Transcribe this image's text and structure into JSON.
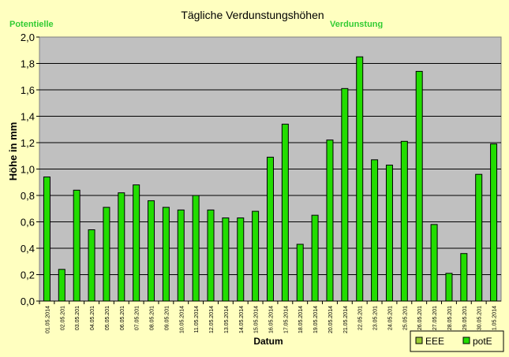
{
  "chart_data": {
    "type": "bar",
    "title": "Tägliche Verdunstungshöhen",
    "xlabel": "Datum",
    "ylabel": "Höhe in mm",
    "ylim": [
      0,
      2.0
    ],
    "yticks": [
      "0,0",
      "0,2",
      "0,4",
      "0,6",
      "0,8",
      "1,0",
      "1,2",
      "1,4",
      "1,6",
      "1,8",
      "2,0"
    ],
    "grid": true,
    "legend_position": "bottom-right",
    "categories": [
      "01.05.2014",
      "02.05.201",
      "03.05.201",
      "04.05.201",
      "05.05.201",
      "06.05.201",
      "07.05.201",
      "08.05.201",
      "09.05.201",
      "10.05.2014",
      "11.05.2014",
      "12.05.2014",
      "13.05.2014",
      "14.05.2014",
      "15.05.2014",
      "16.05.2014",
      "17.05.2014",
      "18.05.2014",
      "19.05.2014",
      "20.05.2014",
      "21.05.2014",
      "22.05.201",
      "23.05.201",
      "24.05.201",
      "25.05.201",
      "26.05.201",
      "27.05.201",
      "28.05.201",
      "29.05.201",
      "30.05.201",
      "31.05.2014"
    ],
    "series": [
      {
        "name": "EEE",
        "color": "#99cc33",
        "values": [
          0,
          0,
          0,
          0,
          0,
          0,
          0,
          0,
          0,
          0,
          0,
          0,
          0,
          0,
          0,
          0,
          0,
          0,
          0,
          0,
          0,
          0,
          0,
          0,
          0,
          0,
          0,
          0,
          0,
          0,
          0
        ]
      },
      {
        "name": "potE",
        "color": "#22dd00",
        "values": [
          0.94,
          0.24,
          0.84,
          0.54,
          0.71,
          0.82,
          0.88,
          0.76,
          0.71,
          0.69,
          0.8,
          0.69,
          0.63,
          0.63,
          0.68,
          1.09,
          1.34,
          0.43,
          0.65,
          1.22,
          1.61,
          1.85,
          1.07,
          1.03,
          1.21,
          1.74,
          0.58,
          0.21,
          0.36,
          0.96,
          1.19
        ]
      }
    ]
  },
  "overlays": {
    "left_label": "Potentielle",
    "right_label": "Verdunstung"
  }
}
